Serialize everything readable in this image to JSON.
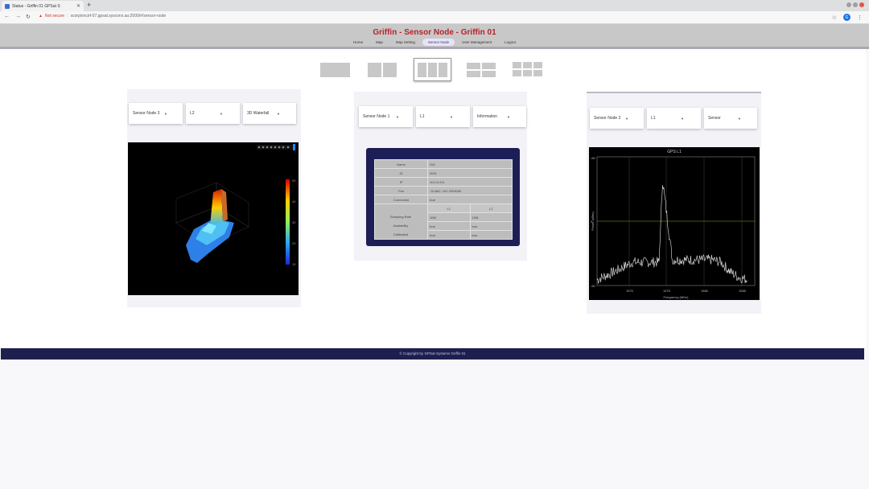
{
  "browser": {
    "tab_title": "Status - Griffin 01 GPSat S",
    "new_tab": "+",
    "security": "Not secure",
    "url": "scorpioncirf-07.gpsat.sysconx.au:2000/#/sensor-node",
    "profile_initial": "G"
  },
  "app": {
    "title": "Griffin - Sensor Node - Griffin 01",
    "nav": [
      "Home",
      "Map",
      "Map Setting",
      "Sensor Node",
      "User Management",
      "Logout"
    ],
    "active_nav": "Sensor Node"
  },
  "layout_options": [
    "1",
    "2",
    "3",
    "4",
    "6"
  ],
  "active_layout": "3",
  "panels": [
    {
      "selects": [
        "Sensor Node 3",
        "L2",
        "3D Waterfall"
      ],
      "colorbar_ticks": [
        "50",
        "40",
        "30",
        "20",
        "10"
      ]
    },
    {
      "selects": [
        "Sensor Node 1",
        "L1",
        "Information"
      ],
      "info": {
        "rows": [
          {
            "label": "Name",
            "value": "S01"
          },
          {
            "label": "ID",
            "value": "0001"
          },
          {
            "label": "IP",
            "value": "10.0.0.211"
          },
          {
            "label": "Pos",
            "value": "-33.862, 151.2093000"
          },
          {
            "label": "Connected",
            "value": "true"
          }
        ],
        "band_headers": [
          "L1",
          "L2"
        ],
        "band_rows": [
          {
            "label": "Sampling Rate",
            "l1": "10M",
            "l2": "10M"
          },
          {
            "label": "Availability",
            "l1": "true",
            "l2": "true"
          },
          {
            "label": "Calibrated",
            "l1": "true",
            "l2": "true"
          }
        ]
      }
    },
    {
      "selects": [
        "Sensor Node 2",
        "L1",
        "Sensor"
      ],
      "spectrum": {
        "title": "GPS L1",
        "xlabel": "Frequency (MHz)",
        "ylabel": "Power (dBm)",
        "yticks": [
          "-50",
          "0",
          "-50"
        ],
        "xticks": [
          "1570",
          "1575",
          "1580",
          "1585"
        ]
      }
    }
  ],
  "footer": "© Copyright by GPSat Systems Griffin 01",
  "colors": {
    "title": "#b5242b",
    "footer_bg": "#1f1f4f",
    "info_bg": "#1e1e56"
  },
  "chart_data": {
    "type": "line",
    "title": "GPS L1",
    "xlabel": "Frequency (MHz)",
    "ylabel": "Power (dBm)",
    "x": [
      1568,
      1570,
      1572,
      1574,
      1575,
      1575.4,
      1575.8,
      1576.5,
      1578,
      1580,
      1581,
      1582,
      1583,
      1584,
      1585
    ],
    "values": [
      -55,
      -48,
      -40,
      -40,
      -40,
      30,
      5,
      -38,
      -38,
      -38,
      -38,
      -40,
      -48,
      -53,
      -55
    ]
  }
}
